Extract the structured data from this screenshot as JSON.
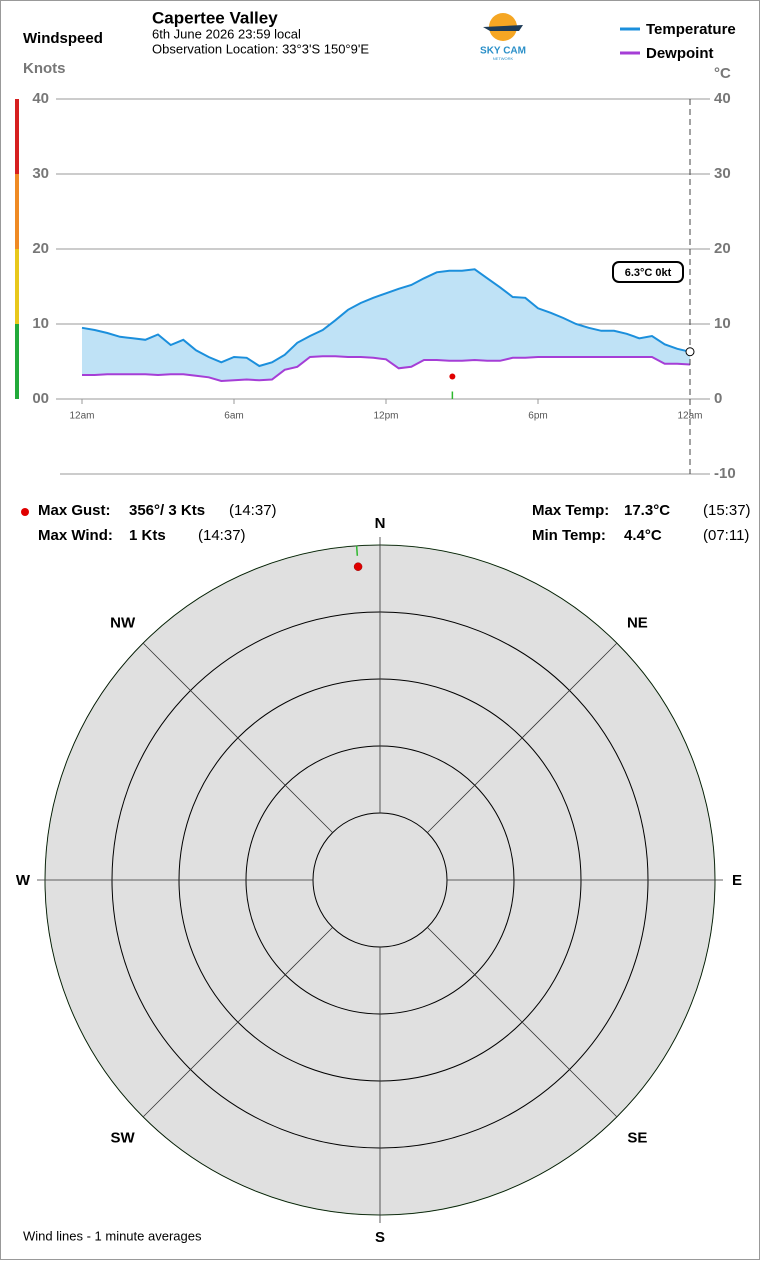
{
  "header": {
    "station": "Capertee Valley",
    "date": "6th June 2026  23:59 local",
    "location": "Observation Location: 33°3'S 150°9'E",
    "logo": "SKY CAM",
    "logo_sub": "NETWORK"
  },
  "chart_data": [
    {
      "type": "line",
      "y2_title": "Windspeed",
      "y2_unit": "Knots",
      "y_unit": "°C",
      "x": [
        0,
        0.5,
        1,
        1.5,
        2,
        2.5,
        3,
        3.5,
        4,
        4.5,
        5,
        5.5,
        6,
        6.5,
        7,
        7.5,
        8,
        8.5,
        9,
        9.5,
        10,
        10.5,
        11,
        11.5,
        12,
        12.5,
        13,
        13.5,
        14,
        14.5,
        15,
        15.5,
        16,
        16.5,
        17,
        17.5,
        18,
        18.5,
        19,
        19.5,
        20,
        20.5,
        21,
        21.5,
        22,
        22.5,
        23,
        23.5,
        24
      ],
      "xlim": [
        0,
        24
      ],
      "xticks": [
        {
          "value": 0,
          "label": "12am"
        },
        {
          "value": 6,
          "label": "6am"
        },
        {
          "value": 12,
          "label": "12pm"
        },
        {
          "value": 18,
          "label": "6pm"
        },
        {
          "value": 24,
          "label": "12am"
        }
      ],
      "ylim": [
        -10,
        40
      ],
      "yticks": [
        -10,
        0,
        10,
        20,
        30,
        40
      ],
      "y2lim": [
        -10,
        40
      ],
      "y2ticks": [
        {
          "value": 0,
          "label": "00"
        },
        10,
        20,
        30,
        40
      ],
      "series": [
        {
          "name": "Temperature",
          "color": "#1b8fdc",
          "values": [
            9.5,
            9.2,
            8.8,
            8.3,
            8.1,
            7.9,
            8.6,
            7.2,
            7.9,
            6.5,
            5.6,
            4.9,
            5.6,
            5.5,
            4.4,
            4.9,
            5.9,
            7.5,
            8.4,
            9.2,
            10.5,
            11.9,
            12.8,
            13.5,
            14.1,
            14.7,
            15.2,
            16.1,
            16.9,
            17.1,
            17.1,
            17.3,
            16.1,
            14.9,
            13.6,
            13.5,
            12.1,
            11.5,
            10.8,
            10.0,
            9.5,
            9.1,
            9.1,
            8.7,
            8.1,
            8.4,
            7.3,
            6.7,
            6.3
          ]
        },
        {
          "name": "Dewpoint",
          "color": "#a53ed6",
          "values": [
            3.2,
            3.2,
            3.3,
            3.3,
            3.3,
            3.3,
            3.2,
            3.3,
            3.3,
            3.1,
            2.9,
            2.4,
            2.5,
            2.6,
            2.5,
            2.6,
            3.9,
            4.3,
            5.6,
            5.7,
            5.7,
            5.6,
            5.6,
            5.5,
            5.3,
            4.1,
            4.3,
            5.2,
            5.2,
            5.1,
            5.1,
            5.2,
            5.1,
            5.1,
            5.5,
            5.5,
            5.6,
            5.6,
            5.6,
            5.6,
            5.6,
            5.6,
            5.6,
            5.6,
            5.6,
            5.6,
            4.7,
            4.7,
            4.6
          ]
        }
      ],
      "fill_color": "#bfe2f6",
      "gust": {
        "x": 14.62,
        "value": 3,
        "color": "#e00000"
      },
      "wind": {
        "x": 14.62,
        "value": 1,
        "color": "#2db82d"
      },
      "current_label": "6.3°C  0kt",
      "grid": true,
      "legend": "top-right"
    },
    {
      "type": "polar",
      "directions": [
        "N",
        "NE",
        "E",
        "SE",
        "S",
        "SW",
        "W",
        "NW"
      ],
      "rlim": [
        0,
        3.2
      ],
      "rings": 5,
      "gust": {
        "direction": 356,
        "value": 3,
        "color": "#e00000"
      },
      "wind": {
        "direction": 356,
        "color": "#2db82d"
      },
      "note": "Wind lines - 1 minute averages"
    }
  ],
  "stats": {
    "gust_label": "Max Gust:",
    "gust": "356°/ 3 Kts",
    "gust_time": "(14:37)",
    "wind_label": "Max Wind:",
    "wind": "1 Kts",
    "wind_time": "(14:37)",
    "max_temp_label": "Max Temp:",
    "max_temp": "17.3°C",
    "max_temp_time": "(15:37)",
    "min_temp_label": "Min Temp:",
    "min_temp": "4.4°C",
    "min_temp_time": "(07:11)"
  }
}
